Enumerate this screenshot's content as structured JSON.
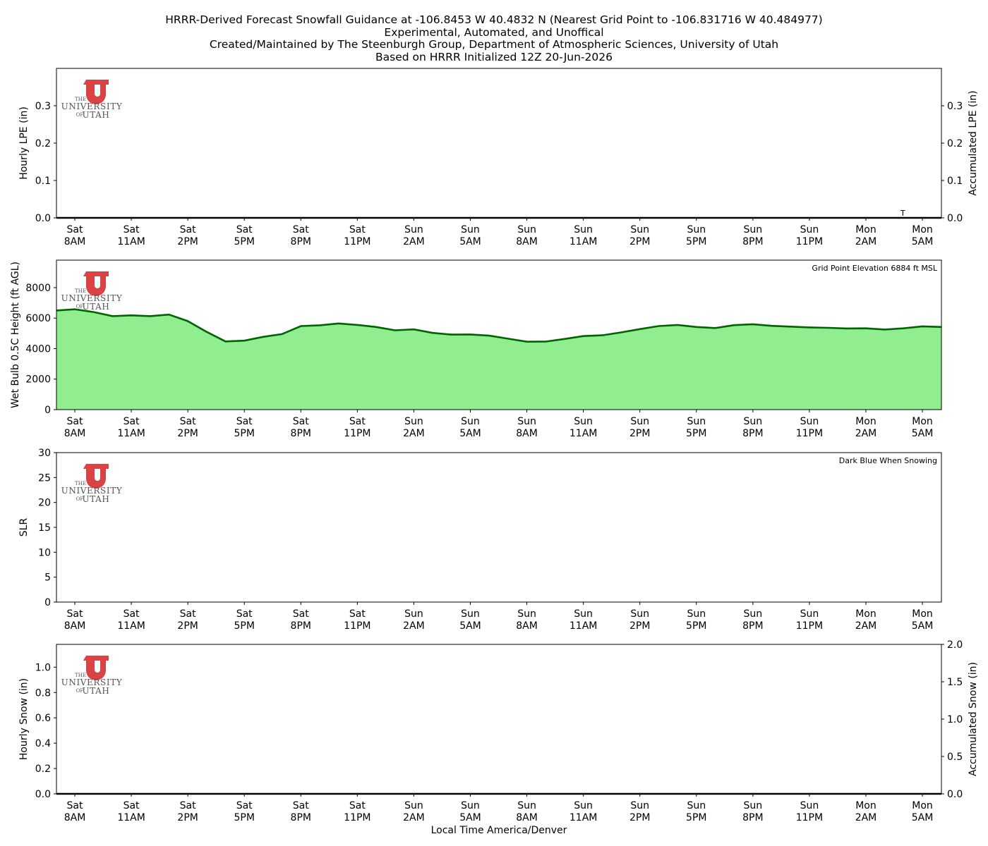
{
  "title_lines": [
    "HRRR-Derived Forecast Snowfall Guidance at -106.8453 W 40.4832 N (Nearest Grid Point to -106.831716 W 40.484977)",
    "Experimental, Automated, and Unoffical",
    "Created/Maintained by The Steenburgh Group, Department of Atmospheric Sciences, University of Utah",
    "Based on HRRR Initialized 12Z 20-Jun-2026"
  ],
  "logo": {
    "line1": "THE",
    "line2": "UNIVERSITY",
    "line3a": "OF",
    "line3b": "UTAH",
    "color": "#d94343"
  },
  "xlabel": "Local Time America/Denver",
  "x_tick_labels": [
    [
      "Sat",
      "8AM"
    ],
    [
      "Sat",
      "11AM"
    ],
    [
      "Sat",
      "2PM"
    ],
    [
      "Sat",
      "5PM"
    ],
    [
      "Sat",
      "8PM"
    ],
    [
      "Sat",
      "11PM"
    ],
    [
      "Sun",
      "2AM"
    ],
    [
      "Sun",
      "5AM"
    ],
    [
      "Sun",
      "8AM"
    ],
    [
      "Sun",
      "11AM"
    ],
    [
      "Sun",
      "2PM"
    ],
    [
      "Sun",
      "5PM"
    ],
    [
      "Sun",
      "8PM"
    ],
    [
      "Sun",
      "11PM"
    ],
    [
      "Mon",
      "2AM"
    ],
    [
      "Mon",
      "5AM"
    ]
  ],
  "chart_data": [
    {
      "type": "line",
      "ylabel": "Hourly LPE (in)",
      "ylabel_right": "Accumulated LPE (in)",
      "ylim": [
        0,
        0.4
      ],
      "yticks": [
        "0.0",
        "0.1",
        "0.2",
        "0.3"
      ],
      "yticks_right": [
        "0.0",
        "0.1",
        "0.2",
        "0.3"
      ],
      "hours": [
        0,
        48
      ],
      "series": [
        {
          "values": [
            0,
            0
          ]
        }
      ],
      "annotation": {
        "text": "T",
        "hour": 45
      }
    },
    {
      "type": "area",
      "ylabel": "Wet Bulb 0.5C Height (ft AGL)",
      "ylim": [
        0,
        9800
      ],
      "yticks": [
        "0",
        "2000",
        "4000",
        "6000",
        "8000"
      ],
      "note": "Grid Point Elevation 6884 ft MSL",
      "fill_color": "#90ee90",
      "line_color": "#006400",
      "series": [
        {
          "values": [
            6500,
            6580,
            6400,
            6130,
            6180,
            6130,
            6230,
            5800,
            5100,
            4470,
            4520,
            4770,
            4950,
            5480,
            5530,
            5650,
            5550,
            5420,
            5200,
            5260,
            5030,
            4920,
            4930,
            4850,
            4650,
            4450,
            4460,
            4630,
            4820,
            4870,
            5060,
            5280,
            5480,
            5550,
            5420,
            5350,
            5540,
            5600,
            5490,
            5440,
            5390,
            5360,
            5320,
            5330,
            5250,
            5330,
            5460,
            5420
          ]
        }
      ]
    },
    {
      "type": "line",
      "ylabel": "SLR",
      "ylim": [
        0,
        30
      ],
      "yticks": [
        "0",
        "5",
        "10",
        "15",
        "20",
        "25",
        "30"
      ],
      "note": "Dark Blue When Snowing",
      "series": []
    },
    {
      "type": "line",
      "ylabel": "Hourly Snow (in)",
      "ylabel_right": "Accumulated Snow (in)",
      "ylim": [
        0,
        1.18
      ],
      "ylim_right": [
        0,
        2.0
      ],
      "yticks": [
        "0.0",
        "0.2",
        "0.4",
        "0.6",
        "0.8",
        "1.0"
      ],
      "yticks_right": [
        "0.0",
        "0.5",
        "1.0",
        "1.5",
        "2.0"
      ],
      "hours": [
        0,
        48
      ],
      "series": [
        {
          "values": [
            0,
            0
          ]
        }
      ]
    }
  ]
}
